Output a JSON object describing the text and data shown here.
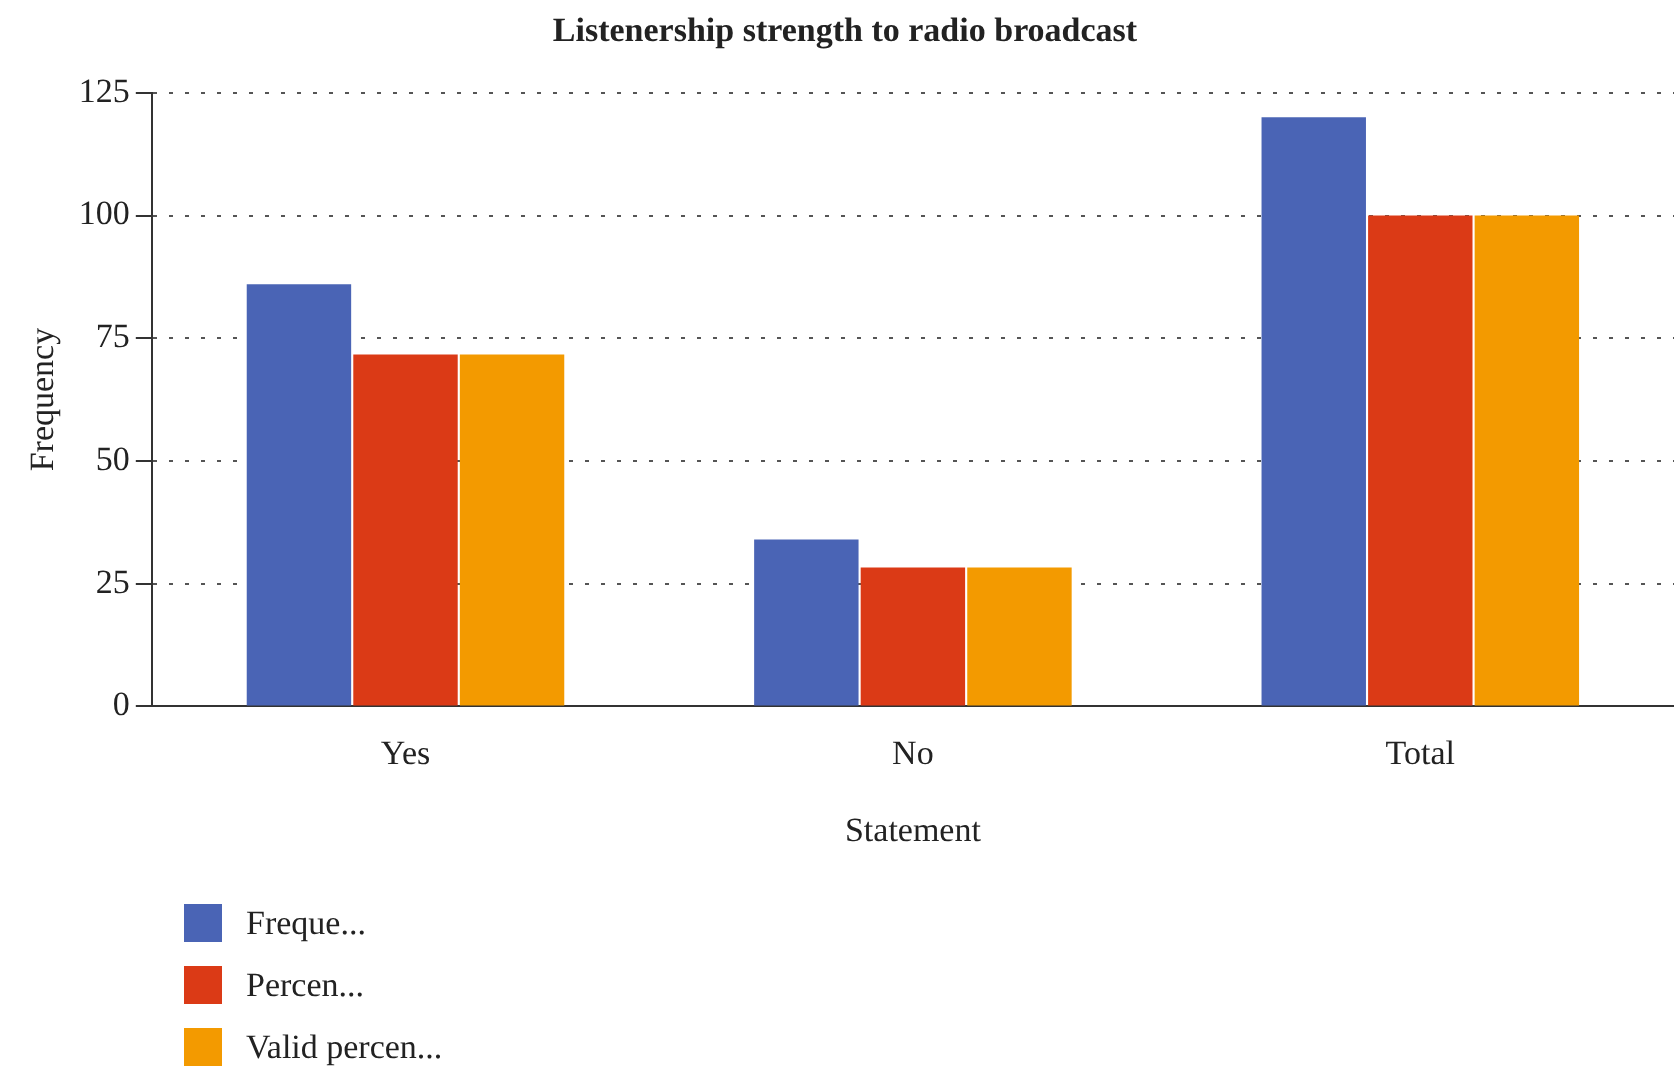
{
  "chart_data": {
    "type": "bar",
    "title": "Listenership strength to radio broadcast",
    "xlabel": "Statement",
    "ylabel": "Frequency",
    "categories": [
      "Yes",
      "No",
      "Total"
    ],
    "series": [
      {
        "name": "Freque...",
        "color": "#4a64b5",
        "values": [
          86,
          34,
          120
        ]
      },
      {
        "name": "Percen...",
        "color": "#db3a16",
        "values": [
          71.7,
          28.3,
          100
        ]
      },
      {
        "name": "Valid percen...",
        "color": "#f39a00",
        "values": [
          71.7,
          28.3,
          100
        ]
      }
    ],
    "ylim": [
      0,
      125
    ],
    "yticks": [
      0,
      25,
      50,
      75,
      100,
      125
    ],
    "grid": "y",
    "legend": "bottom left"
  }
}
